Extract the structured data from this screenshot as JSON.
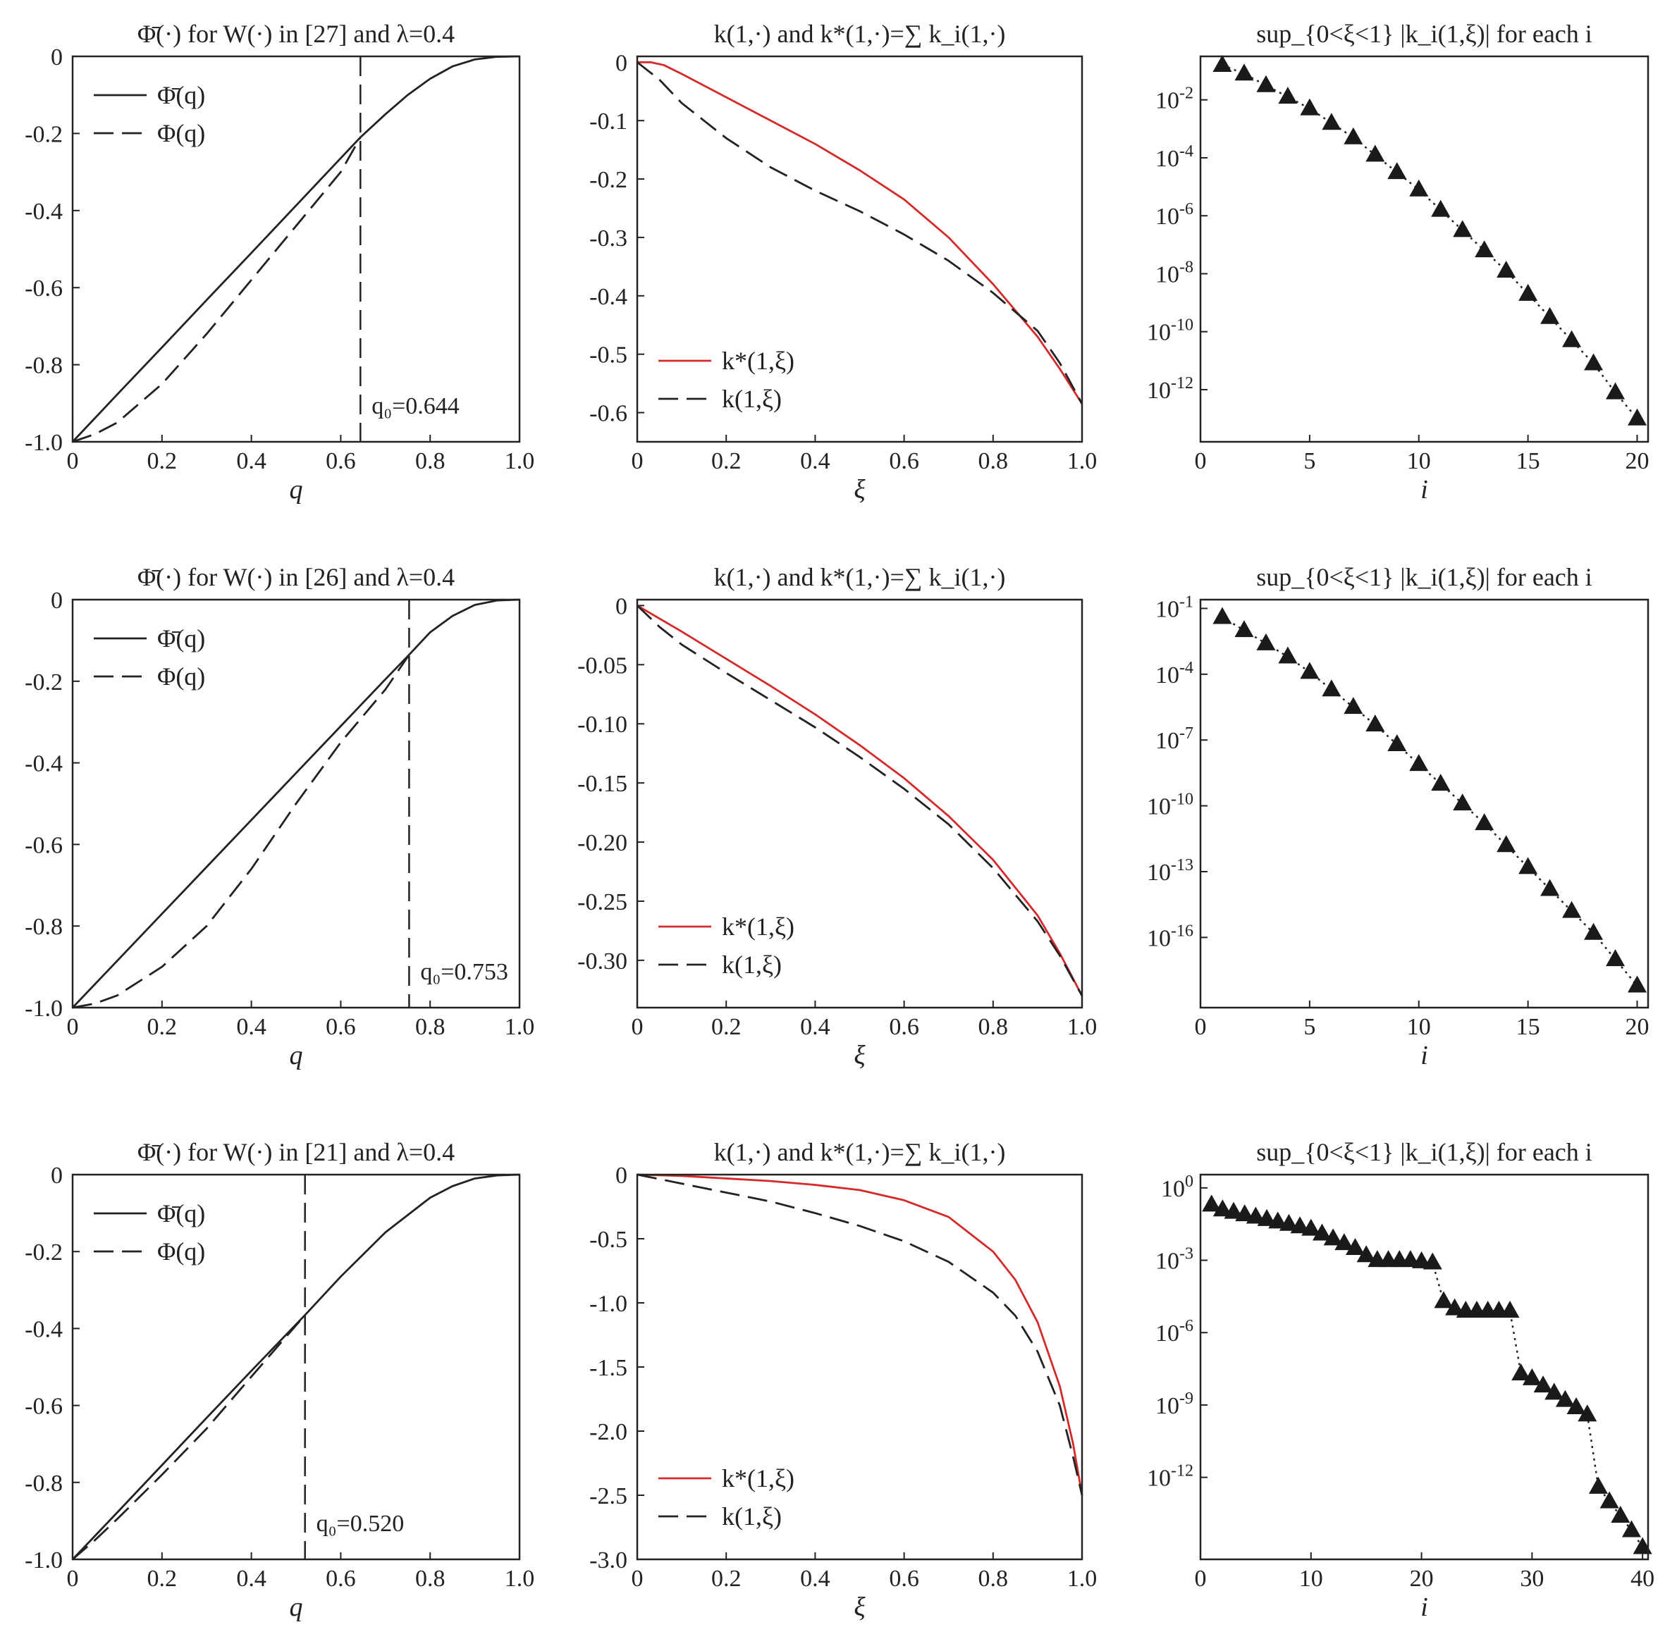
{
  "chart_data": [
    {
      "type": "line",
      "title": "Φ̄(·) for W(·) in [27] and λ=0.4",
      "xlabel": "q",
      "ylabel": "",
      "xlim": [
        0,
        1
      ],
      "ylim": [
        -1,
        0
      ],
      "xticks": [
        0,
        0.2,
        0.4,
        0.6,
        0.8,
        1.0
      ],
      "xtick_labels": [
        "0",
        "0.2",
        "0.4",
        "0.6",
        "0.8",
        "1.0"
      ],
      "yticks": [
        0,
        -0.2,
        -0.4,
        -0.6,
        -0.8,
        -1.0
      ],
      "ytick_labels": [
        "0",
        "-0.2",
        "-0.4",
        "-0.6",
        "-0.8",
        "-1.0"
      ],
      "legend": "top-left",
      "vline": {
        "x": 0.644,
        "label": "q₀=0.644"
      },
      "series": [
        {
          "name": "Φ̄(q)",
          "style": "solid",
          "color": "#222222",
          "x": [
            0,
            0.1,
            0.2,
            0.3,
            0.4,
            0.5,
            0.6,
            0.644,
            0.7,
            0.75,
            0.8,
            0.85,
            0.9,
            0.95,
            1.0
          ],
          "y": [
            -1.0,
            -0.877,
            -0.755,
            -0.632,
            -0.51,
            -0.387,
            -0.264,
            -0.21,
            -0.15,
            -0.1,
            -0.058,
            -0.026,
            -0.008,
            -0.001,
            0
          ]
        },
        {
          "name": "Φ(q)",
          "style": "dashed",
          "color": "#222222",
          "x": [
            0,
            0.05,
            0.1,
            0.2,
            0.3,
            0.4,
            0.5,
            0.6,
            0.644
          ],
          "y": [
            -1.0,
            -0.98,
            -0.95,
            -0.85,
            -0.72,
            -0.58,
            -0.44,
            -0.3,
            -0.21
          ]
        }
      ]
    },
    {
      "type": "line",
      "title": "k(1,·) and k*(1,·)=∑ k_i(1,·)",
      "xlabel": "ξ",
      "ylabel": "",
      "xlim": [
        0,
        1
      ],
      "ylim": [
        -0.65,
        0.01
      ],
      "xticks": [
        0,
        0.2,
        0.4,
        0.6,
        0.8,
        1.0
      ],
      "xtick_labels": [
        "0",
        "0.2",
        "0.4",
        "0.6",
        "0.8",
        "1.0"
      ],
      "yticks": [
        0,
        -0.1,
        -0.2,
        -0.3,
        -0.4,
        -0.5,
        -0.6
      ],
      "ytick_labels": [
        "0",
        "-0.1",
        "-0.2",
        "-0.3",
        "-0.4",
        "-0.5",
        "-0.6"
      ],
      "legend": "bottom-left",
      "series": [
        {
          "name": "k*(1,ξ)",
          "style": "solid",
          "color": "#d62a2a",
          "x": [
            0,
            0.03,
            0.06,
            0.1,
            0.2,
            0.3,
            0.4,
            0.5,
            0.6,
            0.7,
            0.8,
            0.9,
            0.95,
            1.0
          ],
          "y": [
            0,
            0.0,
            -0.005,
            -0.02,
            -0.06,
            -0.1,
            -0.14,
            -0.185,
            -0.235,
            -0.3,
            -0.38,
            -0.47,
            -0.525,
            -0.585
          ]
        },
        {
          "name": "k(1,ξ)",
          "style": "dashed",
          "color": "#222222",
          "x": [
            0,
            0.05,
            0.1,
            0.15,
            0.2,
            0.3,
            0.4,
            0.5,
            0.6,
            0.7,
            0.8,
            0.9,
            0.95,
            1.0
          ],
          "y": [
            0,
            -0.03,
            -0.07,
            -0.1,
            -0.13,
            -0.18,
            -0.22,
            -0.255,
            -0.295,
            -0.34,
            -0.395,
            -0.46,
            -0.515,
            -0.585
          ]
        }
      ]
    },
    {
      "type": "scatter",
      "title": "sup_{0<ξ<1} |k_i(1,ξ)| for each i",
      "xlabel": "i",
      "ylabel": "",
      "xlim": [
        0,
        20.5
      ],
      "ylog_lim": [
        -13.8,
        -0.5
      ],
      "yscale": "log",
      "xticks": [
        0,
        5,
        10,
        15,
        20
      ],
      "xtick_labels": [
        "0",
        "5",
        "10",
        "15",
        "20"
      ],
      "ytick_exps": [
        -2,
        -4,
        -6,
        -8,
        -10,
        -12
      ],
      "series": [
        {
          "name": "",
          "marker": "triangle",
          "color": "#222222",
          "x": [
            1,
            2,
            3,
            4,
            5,
            6,
            7,
            8,
            9,
            10,
            11,
            12,
            13,
            14,
            15,
            16,
            17,
            18,
            19,
            20
          ],
          "log10_y": [
            -0.8,
            -1.1,
            -1.5,
            -1.9,
            -2.3,
            -2.8,
            -3.3,
            -3.9,
            -4.5,
            -5.1,
            -5.8,
            -6.5,
            -7.2,
            -7.9,
            -8.7,
            -9.5,
            -10.3,
            -11.1,
            -12.1,
            -13.0
          ]
        }
      ]
    },
    {
      "type": "line",
      "title": "Φ̄(·) for W(·) in [26] and λ=0.4",
      "xlabel": "q",
      "ylabel": "",
      "xlim": [
        0,
        1
      ],
      "ylim": [
        -1,
        0
      ],
      "xticks": [
        0,
        0.2,
        0.4,
        0.6,
        0.8,
        1.0
      ],
      "xtick_labels": [
        "0",
        "0.2",
        "0.4",
        "0.6",
        "0.8",
        "1.0"
      ],
      "yticks": [
        0,
        -0.2,
        -0.4,
        -0.6,
        -0.8,
        -1.0
      ],
      "ytick_labels": [
        "0",
        "-0.2",
        "-0.4",
        "-0.6",
        "-0.8",
        "-1.0"
      ],
      "legend": "top-left",
      "vline": {
        "x": 0.753,
        "label": "q₀=0.753"
      },
      "series": [
        {
          "name": "Φ̄(q)",
          "style": "solid",
          "color": "#222222",
          "x": [
            0,
            0.1,
            0.2,
            0.3,
            0.4,
            0.5,
            0.6,
            0.7,
            0.753,
            0.8,
            0.85,
            0.9,
            0.95,
            1.0
          ],
          "y": [
            -1.0,
            -0.885,
            -0.77,
            -0.655,
            -0.54,
            -0.425,
            -0.31,
            -0.195,
            -0.135,
            -0.08,
            -0.04,
            -0.013,
            -0.002,
            0
          ]
        },
        {
          "name": "Φ(q)",
          "style": "dashed",
          "color": "#222222",
          "x": [
            0,
            0.05,
            0.1,
            0.2,
            0.3,
            0.4,
            0.5,
            0.6,
            0.7,
            0.753
          ],
          "y": [
            -1.0,
            -0.99,
            -0.97,
            -0.9,
            -0.8,
            -0.66,
            -0.5,
            -0.35,
            -0.22,
            -0.135
          ]
        }
      ]
    },
    {
      "type": "line",
      "title": "k(1,·) and k*(1,·)=∑ k_i(1,·)",
      "xlabel": "ξ",
      "ylabel": "",
      "xlim": [
        0,
        1
      ],
      "ylim": [
        -0.34,
        0.005
      ],
      "xticks": [
        0,
        0.2,
        0.4,
        0.6,
        0.8,
        1.0
      ],
      "xtick_labels": [
        "0",
        "0.2",
        "0.4",
        "0.6",
        "0.8",
        "1.0"
      ],
      "yticks": [
        0,
        -0.05,
        -0.1,
        -0.15,
        -0.2,
        -0.25,
        -0.3
      ],
      "ytick_labels": [
        "0",
        "-0.05",
        "-0.10",
        "-0.15",
        "-0.20",
        "-0.25",
        "-0.30"
      ],
      "legend": "bottom-left",
      "series": [
        {
          "name": "k*(1,ξ)",
          "style": "solid",
          "color": "#d62a2a",
          "x": [
            0,
            0.1,
            0.2,
            0.3,
            0.4,
            0.5,
            0.6,
            0.7,
            0.8,
            0.9,
            0.95,
            1.0
          ],
          "y": [
            0,
            -0.022,
            -0.045,
            -0.068,
            -0.092,
            -0.118,
            -0.146,
            -0.178,
            -0.215,
            -0.262,
            -0.294,
            -0.33
          ]
        },
        {
          "name": "k(1,ξ)",
          "style": "dashed",
          "color": "#222222",
          "x": [
            0,
            0.05,
            0.1,
            0.2,
            0.3,
            0.4,
            0.5,
            0.6,
            0.7,
            0.8,
            0.9,
            0.95,
            1.0
          ],
          "y": [
            0,
            -0.018,
            -0.033,
            -0.057,
            -0.08,
            -0.103,
            -0.128,
            -0.155,
            -0.185,
            -0.222,
            -0.267,
            -0.296,
            -0.33
          ]
        }
      ]
    },
    {
      "type": "scatter",
      "title": "sup_{0<ξ<1} |k_i(1,ξ)| for each i",
      "xlabel": "i",
      "ylabel": "",
      "xlim": [
        0,
        20.5
      ],
      "ylog_lim": [
        -19.2,
        -0.6
      ],
      "yscale": "log",
      "xticks": [
        0,
        5,
        10,
        15,
        20
      ],
      "xtick_labels": [
        "0",
        "5",
        "10",
        "15",
        "20"
      ],
      "ytick_exps": [
        -1,
        -4,
        -7,
        -10,
        -13,
        -16
      ],
      "series": [
        {
          "name": "",
          "marker": "triangle",
          "color": "#222222",
          "x": [
            1,
            2,
            3,
            4,
            5,
            6,
            7,
            8,
            9,
            10,
            11,
            12,
            13,
            14,
            15,
            16,
            17,
            18,
            19,
            20
          ],
          "log10_y": [
            -1.4,
            -2.0,
            -2.6,
            -3.2,
            -3.9,
            -4.7,
            -5.5,
            -6.3,
            -7.2,
            -8.1,
            -9.0,
            -9.9,
            -10.8,
            -11.8,
            -12.8,
            -13.8,
            -14.8,
            -15.8,
            -17.0,
            -18.2
          ]
        }
      ]
    },
    {
      "type": "line",
      "title": "Φ̄(·) for W(·) in [21] and λ=0.4",
      "xlabel": "q",
      "ylabel": "",
      "xlim": [
        0,
        1
      ],
      "ylim": [
        -1,
        0
      ],
      "xticks": [
        0,
        0.2,
        0.4,
        0.6,
        0.8,
        1.0
      ],
      "xtick_labels": [
        "0",
        "0.2",
        "0.4",
        "0.6",
        "0.8",
        "1.0"
      ],
      "yticks": [
        0,
        -0.2,
        -0.4,
        -0.6,
        -0.8,
        -1.0
      ],
      "ytick_labels": [
        "0",
        "-0.2",
        "-0.4",
        "-0.6",
        "-0.8",
        "-1.0"
      ],
      "legend": "top-left",
      "vline": {
        "x": 0.52,
        "label": "q₀=0.520"
      },
      "series": [
        {
          "name": "Φ̄(q)",
          "style": "solid",
          "color": "#222222",
          "x": [
            0,
            0.1,
            0.2,
            0.3,
            0.4,
            0.52,
            0.6,
            0.7,
            0.8,
            0.85,
            0.9,
            0.95,
            1.0
          ],
          "y": [
            -1.0,
            -0.878,
            -0.755,
            -0.632,
            -0.51,
            -0.365,
            -0.265,
            -0.15,
            -0.06,
            -0.03,
            -0.01,
            -0.002,
            0
          ]
        },
        {
          "name": "Φ(q)",
          "style": "dashed",
          "color": "#222222",
          "x": [
            0,
            0.05,
            0.1,
            0.2,
            0.3,
            0.4,
            0.52
          ],
          "y": [
            -1.0,
            -0.95,
            -0.895,
            -0.78,
            -0.66,
            -0.525,
            -0.365
          ]
        }
      ]
    },
    {
      "type": "line",
      "title": "k(1,·) and k*(1,·)=∑ k_i(1,·)",
      "xlabel": "ξ",
      "ylabel": "",
      "xlim": [
        0,
        1
      ],
      "ylim": [
        -3.0,
        0
      ],
      "xticks": [
        0,
        0.2,
        0.4,
        0.6,
        0.8,
        1.0
      ],
      "xtick_labels": [
        "0",
        "0.2",
        "0.4",
        "0.6",
        "0.8",
        "1.0"
      ],
      "yticks": [
        0,
        -0.5,
        -1.0,
        -1.5,
        -2.0,
        -2.5,
        -3.0
      ],
      "ytick_labels": [
        "0",
        "-0.5",
        "-1.0",
        "-1.5",
        "-2.0",
        "-2.5",
        "-3.0"
      ],
      "legend": "bottom-left",
      "series": [
        {
          "name": "k*(1,ξ)",
          "style": "solid",
          "color": "#d62a2a",
          "x": [
            0,
            0.1,
            0.2,
            0.3,
            0.4,
            0.5,
            0.6,
            0.7,
            0.8,
            0.85,
            0.9,
            0.95,
            0.98,
            1.0
          ],
          "y": [
            0,
            -0.01,
            -0.03,
            -0.05,
            -0.08,
            -0.12,
            -0.2,
            -0.33,
            -0.6,
            -0.82,
            -1.15,
            -1.65,
            -2.1,
            -2.5
          ]
        },
        {
          "name": "k(1,ξ)",
          "style": "dashed",
          "color": "#222222",
          "x": [
            0,
            0.1,
            0.2,
            0.3,
            0.4,
            0.5,
            0.6,
            0.7,
            0.8,
            0.85,
            0.9,
            0.95,
            0.98,
            1.0
          ],
          "y": [
            0,
            -0.07,
            -0.14,
            -0.21,
            -0.3,
            -0.4,
            -0.52,
            -0.68,
            -0.92,
            -1.1,
            -1.38,
            -1.8,
            -2.2,
            -2.5
          ]
        }
      ]
    },
    {
      "type": "scatter",
      "title": "sup_{0<ξ<1} |k_i(1,ξ)| for each i",
      "xlabel": "i",
      "ylabel": "",
      "xlim": [
        0,
        40.5
      ],
      "ylog_lim": [
        -15.4,
        0.55
      ],
      "yscale": "log",
      "xticks": [
        0,
        10,
        20,
        30,
        40
      ],
      "xtick_labels": [
        "0",
        "10",
        "20",
        "30",
        "40"
      ],
      "ytick_exps": [
        0,
        -3,
        -6,
        -9,
        -12
      ],
      "series": [
        {
          "name": "",
          "marker": "triangle",
          "color": "#222222",
          "x": [
            1,
            2,
            3,
            4,
            5,
            6,
            7,
            8,
            9,
            10,
            11,
            12,
            13,
            14,
            15,
            16,
            17,
            18,
            19,
            20,
            21,
            22,
            23,
            24,
            25,
            26,
            27,
            28,
            29,
            30,
            31,
            32,
            33,
            34,
            35,
            36,
            37,
            38,
            39,
            40
          ],
          "log10_y": [
            -0.7,
            -0.9,
            -1.0,
            -1.1,
            -1.2,
            -1.3,
            -1.4,
            -1.5,
            -1.6,
            -1.7,
            -1.9,
            -2.1,
            -2.3,
            -2.5,
            -2.8,
            -3.0,
            -3.0,
            -3.0,
            -3.0,
            -3.05,
            -3.1,
            -4.7,
            -5.0,
            -5.1,
            -5.1,
            -5.1,
            -5.1,
            -5.1,
            -7.7,
            -7.9,
            -8.2,
            -8.5,
            -8.8,
            -9.1,
            -9.4,
            -12.4,
            -13.0,
            -13.6,
            -14.2,
            -14.9
          ]
        }
      ]
    }
  ]
}
